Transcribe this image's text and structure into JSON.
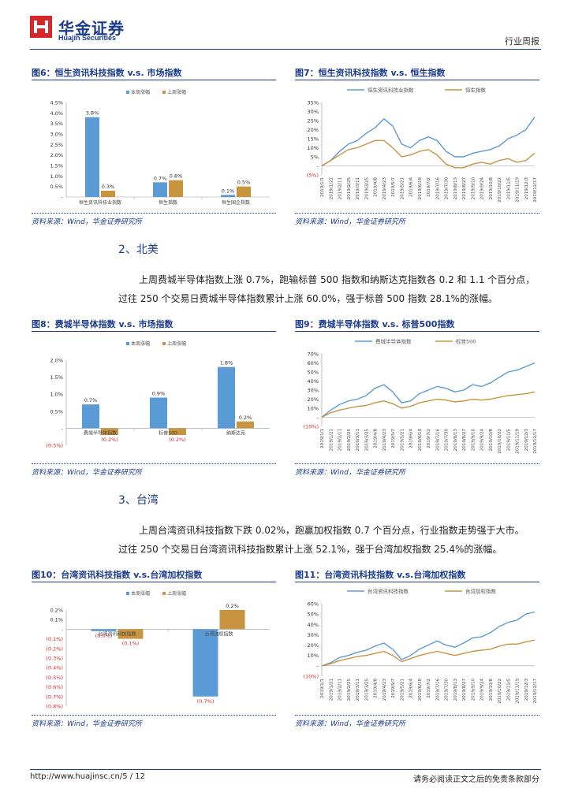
{
  "header": {
    "logo_cn": "华金证券",
    "logo_en": "Huajin Securities",
    "doc_type": "行业周报",
    "brand_color": "#1a3a8c",
    "logo_red": "#d7262c"
  },
  "colors": {
    "series_blue": "#5b9bd5",
    "series_gold": "#c8943f",
    "negative_red": "#d7262c",
    "text_blue": "#1a3a8c"
  },
  "figures": {
    "fig6": {
      "title": "图6：恒生资讯科技指数 v.s. 市场指数",
      "source": "资料来源：Wind，华金证券研究所",
      "chart_data": {
        "type": "bar",
        "categories": [
          "恒生资讯科技业指数",
          "恒生指数",
          "恒生国企指数"
        ],
        "series": [
          {
            "name": "本周涨幅",
            "values": [
              3.8,
              0.7,
              0.1
            ],
            "labels": [
              "3.8%",
              "0.7%",
              "0.1%"
            ]
          },
          {
            "name": "上周涨幅",
            "values": [
              0.3,
              0.8,
              0.5
            ],
            "labels": [
              "0.3%",
              "0.8%",
              "0.5%"
            ]
          }
        ],
        "yticks": [
          "4.5%",
          "4.0%",
          "3.5%",
          "3.0%",
          "2.5%",
          "2.0%",
          "1.5%",
          "1.0%",
          "0.5%",
          "-"
        ],
        "ylim": [
          0,
          4.5
        ]
      }
    },
    "fig7": {
      "title": "图7：恒生资讯科技指数 v.s. 恒生指数",
      "source": "资料来源：Wind，华金证券研究所",
      "chart_data": {
        "type": "line",
        "legend": [
          "恒生资讯科技业指数",
          "恒生指数"
        ],
        "yticks": [
          "35%",
          "30%",
          "25%",
          "20%",
          "15%",
          "10%",
          "5%",
          "-",
          "(5%)"
        ],
        "ylim": [
          -5,
          35
        ],
        "x": [
          "2019/1/1",
          "2019/1/21",
          "2019/2/11",
          "2019/2/25",
          "2019/3/11",
          "2019/3/25",
          "2019/4/8",
          "2019/4/23",
          "2019/5/7",
          "2019/5/21",
          "2019/6/4",
          "2019/6/18",
          "2019/7/2",
          "2019/7/16",
          "2019/7/30",
          "2019/8/13",
          "2019/8/27",
          "2019/9/10",
          "2019/9/24",
          "2019/10/8",
          "2019/10/22",
          "2019/11/5",
          "2019/11/19",
          "2019/12/3",
          "2019/12/17"
        ],
        "series": [
          {
            "name": "恒生资讯科技业指数",
            "values": [
              0,
              3,
              8,
              12,
              14,
              18,
              21,
              26,
              22,
              12,
              10,
              14,
              16,
              14,
              8,
              5,
              5,
              7,
              8,
              9,
              11,
              15,
              17,
              20,
              27
            ]
          },
          {
            "name": "恒生指数",
            "values": [
              0,
              3,
              6,
              9,
              10,
              12,
              14,
              14,
              10,
              5,
              6,
              8,
              9,
              6,
              1,
              -1,
              -1,
              1,
              2,
              1,
              3,
              4,
              2,
              3,
              7
            ]
          }
        ]
      }
    },
    "fig8": {
      "title": "图8：费城半导体指数 v.s. 市场指数",
      "source": "资料来源：Wind，华金证券研究所",
      "chart_data": {
        "type": "bar",
        "categories": [
          "费城半导体指数",
          "标普500",
          "纳斯达克"
        ],
        "series": [
          {
            "name": "本周涨幅",
            "values": [
              0.7,
              0.9,
              1.8
            ],
            "labels": [
              "0.7%",
              "0.9%",
              "1.8%"
            ]
          },
          {
            "name": "上周涨幅",
            "values": [
              -0.2,
              -0.2,
              0.2
            ],
            "labels": [
              "(0.2%)",
              "(0.2%)",
              "0.2%"
            ]
          }
        ],
        "yticks": [
          "2.0%",
          "1.5%",
          "1.0%",
          "0.5%",
          "-",
          "(0.5%)"
        ],
        "ylim": [
          -0.5,
          2.0
        ]
      }
    },
    "fig9": {
      "title": "图9：费城半导体指数 v.s. 标普500指数",
      "source": "资料来源：Wind，华金证券研究所",
      "chart_data": {
        "type": "line",
        "legend": [
          "费城半导体指数",
          "标普500"
        ],
        "yticks": [
          "70%",
          "60%",
          "50%",
          "40%",
          "30%",
          "20%",
          "10%",
          "-",
          "(10%)"
        ],
        "ylim": [
          -10,
          70
        ],
        "x": [
          "2019/1/1",
          "2019/1/21",
          "2019/2/11",
          "2019/2/25",
          "2019/3/11",
          "2019/3/25",
          "2019/4/8",
          "2019/4/23",
          "2019/5/7",
          "2019/5/21",
          "2019/6/4",
          "2019/6/18",
          "2019/7/2",
          "2019/7/16",
          "2019/7/30",
          "2019/8/13",
          "2019/8/27",
          "2019/9/10",
          "2019/9/24",
          "2019/10/8",
          "2019/10/22",
          "2019/11/5",
          "2019/11/19",
          "2019/12/3",
          "2019/12/17"
        ],
        "series": [
          {
            "name": "费城半导体指数",
            "values": [
              0,
              8,
              14,
              18,
              20,
              24,
              32,
              36,
              28,
              16,
              18,
              26,
              30,
              34,
              32,
              28,
              30,
              36,
              34,
              38,
              44,
              50,
              52,
              56,
              60
            ]
          },
          {
            "name": "标普500",
            "values": [
              0,
              5,
              8,
              10,
              12,
              13,
              16,
              18,
              15,
              10,
              12,
              16,
              18,
              20,
              19,
              17,
              18,
              20,
              19,
              20,
              22,
              24,
              25,
              26,
              28
            ]
          }
        ]
      }
    },
    "fig10": {
      "title": "图10：台湾资讯科技指数 v.s.台湾加权指数",
      "source": "资料来源：Wind，华金证券研究所",
      "chart_data": {
        "type": "bar",
        "categories": [
          "台湾资讯科技指数",
          "台湾加权指数"
        ],
        "series": [
          {
            "name": "本周涨幅",
            "values": [
              -0.02,
              -0.7
            ],
            "labels": [
              "(0.0%)",
              "(0.7%)"
            ]
          },
          {
            "name": "上周涨幅",
            "values": [
              -0.1,
              0.2
            ],
            "labels": [
              "(0.1%)",
              "0.2%"
            ]
          }
        ],
        "yticks": [
          "0.2%",
          "0.1%",
          "-",
          "(0.1%)",
          "(0.2%)",
          "(0.3%)",
          "(0.4%)",
          "(0.5%)",
          "(0.6%)",
          "(0.7%)",
          "(0.8%)"
        ],
        "ylim": [
          -0.8,
          0.2
        ]
      }
    },
    "fig11": {
      "title": "图11：台湾资讯科技指数 v.s.台湾加权指数",
      "source": "资料来源：Wind，华金证券研究所",
      "chart_data": {
        "type": "line",
        "legend": [
          "台湾资讯科技指数",
          "台湾加权指数"
        ],
        "yticks": [
          "60%",
          "50%",
          "40%",
          "30%",
          "20%",
          "10%",
          "-",
          "(10%)"
        ],
        "ylim": [
          -10,
          60
        ],
        "x": [
          "2019/1/1",
          "2019/1/21",
          "2019/2/11",
          "2019/2/25",
          "2019/3/11",
          "2019/3/25",
          "2019/4/8",
          "2019/4/23",
          "2019/5/7",
          "2019/5/21",
          "2019/6/4",
          "2019/6/18",
          "2019/7/2",
          "2019/7/16",
          "2019/7/30",
          "2019/8/13",
          "2019/8/27",
          "2019/9/10",
          "2019/9/24",
          "2019/10/8",
          "2019/10/22",
          "2019/11/5",
          "2019/11/19",
          "2019/12/3",
          "2019/12/17"
        ],
        "series": [
          {
            "name": "台湾资讯科技指数",
            "values": [
              0,
              3,
              8,
              10,
              13,
              15,
              19,
              22,
              16,
              6,
              10,
              16,
              20,
              24,
              20,
              18,
              22,
              27,
              28,
              32,
              38,
              42,
              44,
              50,
              52
            ]
          },
          {
            "name": "台湾加权指数",
            "values": [
              0,
              2,
              5,
              7,
              9,
              10,
              12,
              14,
              10,
              4,
              7,
              10,
              12,
              14,
              12,
              10,
              12,
              14,
              15,
              16,
              19,
              21,
              21,
              23,
              25
            ]
          }
        ]
      }
    }
  },
  "sections": {
    "north_america": {
      "heading": "2、北美",
      "para1": "上周费城半导体指数上涨 0.7%，跑输标普 500 指数和纳斯达克指数各 0.2 和 1.1 个百分点，",
      "para2": "过往 250 个交易日费城半导体指数累计上涨 60.0%，强于标普 500 指数 28.1%的涨幅。"
    },
    "taiwan": {
      "heading": "3、台湾",
      "para1": "上周台湾资讯科技指数下跌 0.02%，跑赢加权指数 0.7 个百分点，行业指数走势强于大市。",
      "para2": "过往 250 个交易日台湾资讯科技指数累计上涨 52.1%，强于台湾加权指数 25.4%的涨幅。"
    }
  },
  "footer": {
    "url_page": "http://www.huajinsc.cn/5 / 12",
    "disclaimer": "请务必阅读正文之后的免责条款部分"
  }
}
